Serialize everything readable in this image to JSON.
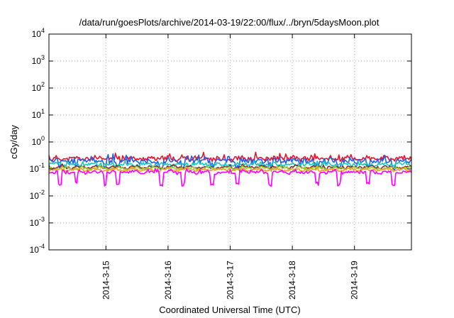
{
  "chart_data": {
    "type": "line",
    "title": "/data/run/goesPlots/archive/2014-03-19/22:00/flux/../bryn/5daysMoon.plot",
    "xlabel": "Coordinated Universal Time (UTC)",
    "ylabel": "cGy/day",
    "yscale": "log",
    "ylim": [
      0.0001,
      10000
    ],
    "xlim": [
      "2014-03-14 02:00",
      "2014-03-19 22:00"
    ],
    "grid": true,
    "y_ticks": [
      {
        "base": "10",
        "exp": "4",
        "value": 10000
      },
      {
        "base": "10",
        "exp": "3",
        "value": 1000
      },
      {
        "base": "10",
        "exp": "2",
        "value": 100
      },
      {
        "base": "10",
        "exp": "1",
        "value": 10
      },
      {
        "base": "10",
        "exp": "0",
        "value": 1
      },
      {
        "base": "10",
        "exp": "-1",
        "value": 0.1
      },
      {
        "base": "10",
        "exp": "-2",
        "value": 0.01
      },
      {
        "base": "10",
        "exp": "-3",
        "value": 0.001
      },
      {
        "base": "10",
        "exp": "-4",
        "value": 0.0001
      }
    ],
    "x_ticks": [
      "2014-3-15",
      "2014-3-16",
      "2014-3-17",
      "2014-3-18",
      "2014-3-19"
    ],
    "series": [
      {
        "color": "#e8132a",
        "base": 0.24,
        "amp": 0.28,
        "dips": 0.0,
        "seed": 11
      },
      {
        "color": "#1f5fe0",
        "base": 0.2,
        "amp": 0.35,
        "dips": 0.05,
        "seed": 23
      },
      {
        "color": "#18c8c0",
        "base": 0.145,
        "amp": 0.18,
        "dips": 0.0,
        "seed": 37
      },
      {
        "color": "#7a2e2e",
        "base": 0.115,
        "amp": 0.12,
        "dips": 0.0,
        "seed": 41
      },
      {
        "color": "#9acd32",
        "base": 0.105,
        "amp": 0.1,
        "dips": 0.0,
        "seed": 53
      },
      {
        "color": "#f2a020",
        "base": 0.092,
        "amp": 0.1,
        "dips": 0.0,
        "seed": 61
      },
      {
        "color": "#ff00ff",
        "base": 0.075,
        "amp": 0.16,
        "dips": 0.09,
        "seed": 79
      }
    ]
  }
}
